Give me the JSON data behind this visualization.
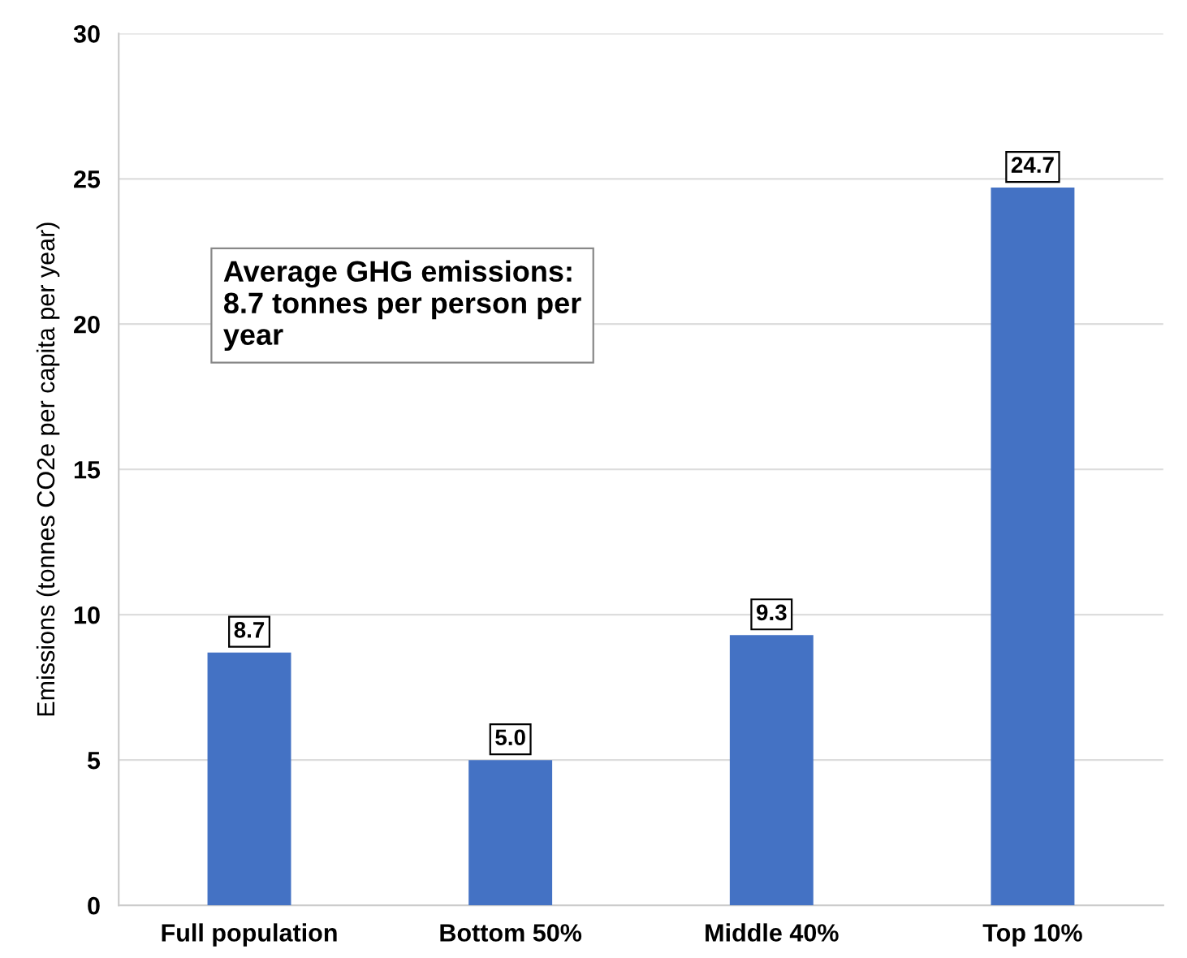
{
  "chart_data": {
    "type": "bar",
    "ylabel": "Emissions (tonnes CO2e per capita per year)",
    "categories": [
      "Full population",
      "Bottom 50%",
      "Middle 40%",
      "Top 10%"
    ],
    "values": [
      8.7,
      5.0,
      9.3,
      24.7
    ],
    "value_labels": [
      "8.7",
      "5.0",
      "9.3",
      "24.7"
    ],
    "color": "#4472c4",
    "ylim": [
      0,
      30
    ],
    "yticks": [
      0,
      5,
      10,
      15,
      20,
      25,
      30
    ],
    "grid": "y",
    "annotations": [
      "Average GHG emissions: 8.7 tonnes per person per year"
    ]
  }
}
